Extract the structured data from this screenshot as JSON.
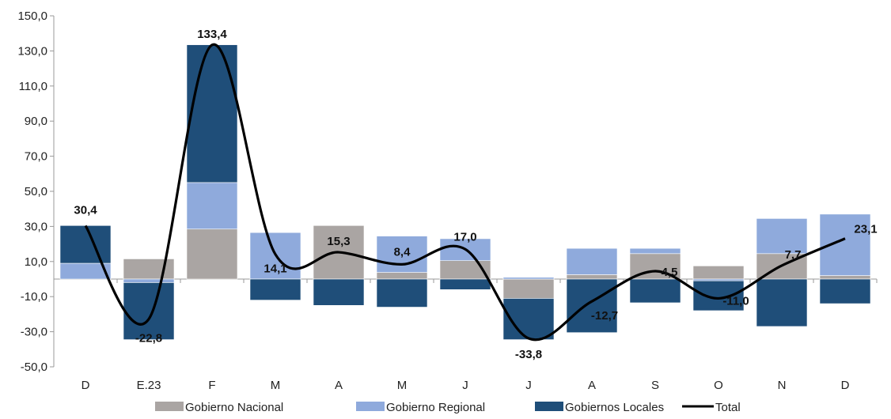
{
  "chart_data": {
    "type": "bar",
    "stacked": true,
    "categories": [
      "D",
      "E.23",
      "F",
      "M",
      "A",
      "M",
      "J",
      "J",
      "A",
      "S",
      "O",
      "N",
      "D"
    ],
    "series": [
      {
        "name": "Gobierno  Nacional",
        "color": "#aaa5a3",
        "values": [
          0,
          11.5,
          28.5,
          0,
          30.5,
          3.8,
          10.5,
          -11,
          2.5,
          14.5,
          7.5,
          14.5,
          2
        ]
      },
      {
        "name": "Gobierno Regional",
        "color": "#8faadc",
        "values": [
          9,
          -2,
          26.5,
          26.5,
          0,
          20.7,
          12.5,
          1,
          15,
          3,
          -1,
          20,
          35
        ]
      },
      {
        "name": "Gobiernos Locales",
        "color": "#1f4e79",
        "values": [
          21.5,
          -32.5,
          78.5,
          -12,
          -15,
          -16,
          -6,
          -23.5,
          -30.5,
          -13.5,
          -17,
          -27,
          -14
        ]
      }
    ],
    "line_series": {
      "name": "Total",
      "color": "#000000",
      "values": [
        30.4,
        -22.8,
        133.4,
        14.1,
        15.3,
        8.4,
        17.0,
        -33.8,
        -12.7,
        4.5,
        -11.0,
        7.7,
        23.1
      ]
    },
    "data_labels": [
      "30,4",
      "-22,8",
      "133,4",
      "14,1",
      "15,3",
      "8,4",
      "17,0",
      "-33,8",
      "-12,7",
      "4,5",
      "-11,0",
      "7,7",
      "23,1"
    ],
    "y_ticks": [
      "150,0",
      "130,0",
      "110,0",
      "90,0",
      "70,0",
      "50,0",
      "30,0",
      "10,0",
      "-10,0",
      "-30,0",
      "-50,0"
    ],
    "ylim": [
      -50,
      150
    ],
    "title": "",
    "xlabel": "",
    "ylabel": "",
    "legend_position": "bottom",
    "grid": false
  }
}
